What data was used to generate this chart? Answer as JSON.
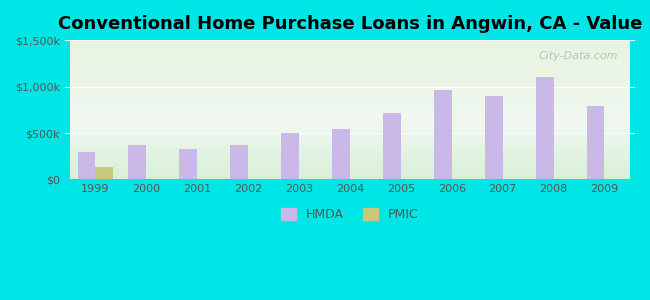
{
  "title": "Conventional Home Purchase Loans in Angwin, CA - Value",
  "years": [
    1999,
    2000,
    2001,
    2002,
    2003,
    2004,
    2005,
    2006,
    2007,
    2008,
    2009
  ],
  "hmda_values": [
    300000,
    375000,
    325000,
    375000,
    500000,
    540000,
    720000,
    960000,
    900000,
    1100000,
    790000
  ],
  "pmic_values": [
    130000,
    0,
    0,
    0,
    0,
    0,
    0,
    0,
    0,
    0,
    0
  ],
  "hmda_color": "#c9b8e8",
  "pmic_color": "#c8c87a",
  "background_outer": "#00e5e5",
  "ylim": [
    0,
    1500000
  ],
  "yticks": [
    0,
    500000,
    1000000,
    1500000
  ],
  "ytick_labels": [
    "$0",
    "$500k",
    "$1,000k",
    "$1,500k"
  ],
  "bar_width": 0.35,
  "title_fontsize": 13,
  "watermark": "City-Data.com"
}
